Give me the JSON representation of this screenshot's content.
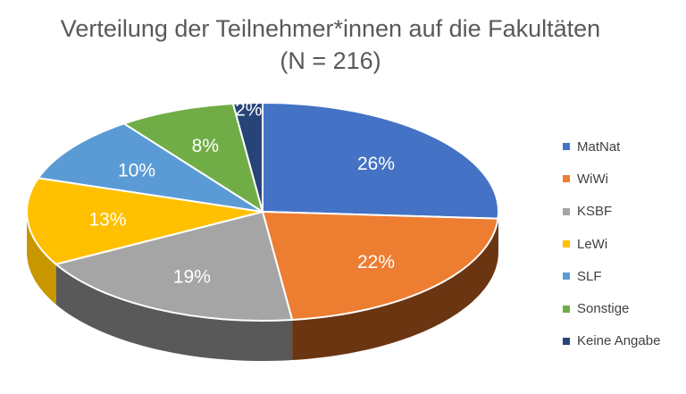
{
  "chart_data": {
    "type": "pie",
    "title": "Verteilung der Teilnehmer*innen  auf die Fakultäten",
    "subtitle": "(N = 216)",
    "legend_position": "right",
    "slices": [
      {
        "name": "MatNat",
        "value": 26,
        "label": "26%",
        "color": "#4472C4",
        "side": "#2B4A80"
      },
      {
        "name": "WiWi",
        "value": 22,
        "label": "22%",
        "color": "#ED7D31",
        "side": "#6B3512"
      },
      {
        "name": "KSBF",
        "value": 19,
        "label": "19%",
        "color": "#A5A5A5",
        "side": "#595959"
      },
      {
        "name": "LeWi",
        "value": 13,
        "label": "13%",
        "color": "#FFC000",
        "side": "#C89700"
      },
      {
        "name": "SLF",
        "value": 10,
        "label": "10%",
        "color": "#5B9BD5",
        "side": "#3A6E9E"
      },
      {
        "name": "Sonstige",
        "value": 8,
        "label": "8%",
        "color": "#70AD47",
        "side": "#4A7A2E"
      },
      {
        "name": "Keine Angabe",
        "value": 2,
        "label": "2%",
        "color": "#264478",
        "side": "#162A4A"
      }
    ]
  }
}
